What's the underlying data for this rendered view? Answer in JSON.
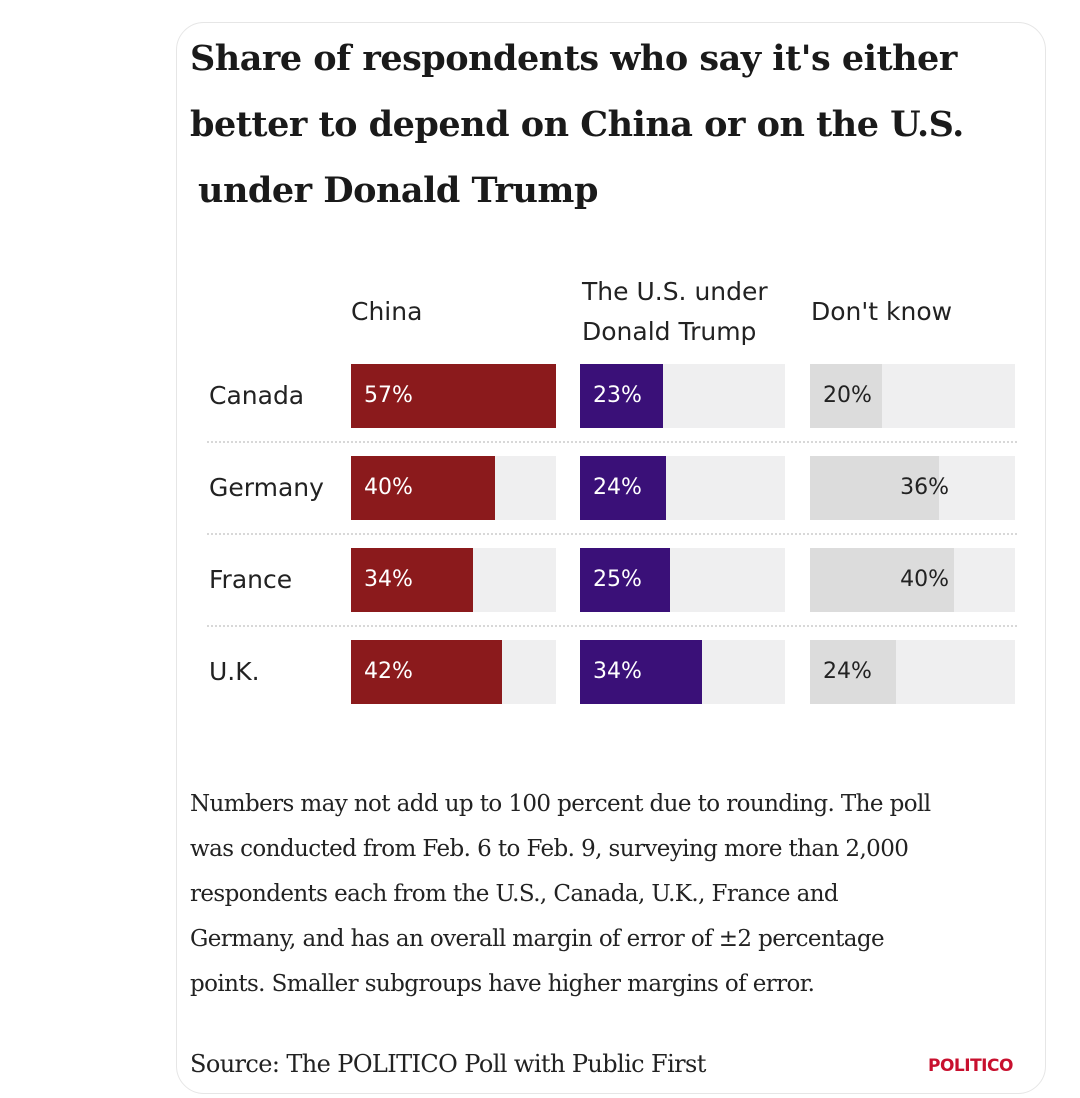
{
  "colors": {
    "china": "#8b1a1c",
    "us": "#3a1078",
    "dont_know": "#dcdcdc",
    "track": "#efeff0",
    "logo": "#c8102e"
  },
  "chart_data": {
    "type": "bar",
    "title_lines": [
      "Share of respondents who say it's either",
      "better to depend on China or on the U.S.",
      "under Donald Trump"
    ],
    "categories": [
      "Canada",
      "Germany",
      "France",
      "U.K."
    ],
    "series": [
      {
        "name_lines": [
          "China"
        ],
        "values": [
          57,
          40,
          34,
          42
        ],
        "labels": [
          "57%",
          "40%",
          "34%",
          "42%"
        ]
      },
      {
        "name_lines": [
          "The U.S. under",
          "Donald Trump"
        ],
        "values": [
          23,
          24,
          25,
          34
        ],
        "labels": [
          "23%",
          "24%",
          "25%",
          "34%"
        ]
      },
      {
        "name_lines": [
          "Don't know"
        ],
        "values": [
          20,
          36,
          40,
          24
        ],
        "labels": [
          "20%",
          "36%",
          "40%",
          "24%"
        ]
      }
    ],
    "ylim": [
      0,
      57
    ]
  },
  "note_lines": [
    "Numbers may not add up to 100 percent due to rounding. The poll",
    "was conducted from Feb. 6 to Feb. 9, surveying more than 2,000",
    "respondents each from the U.S., Canada, U.K., France and",
    "Germany, and has an overall margin of error of ±2 percentage",
    "points. Smaller subgroups have higher margins of error."
  ],
  "source": "Source: The POLITICO Poll with Public First",
  "logo": "POLITICO"
}
